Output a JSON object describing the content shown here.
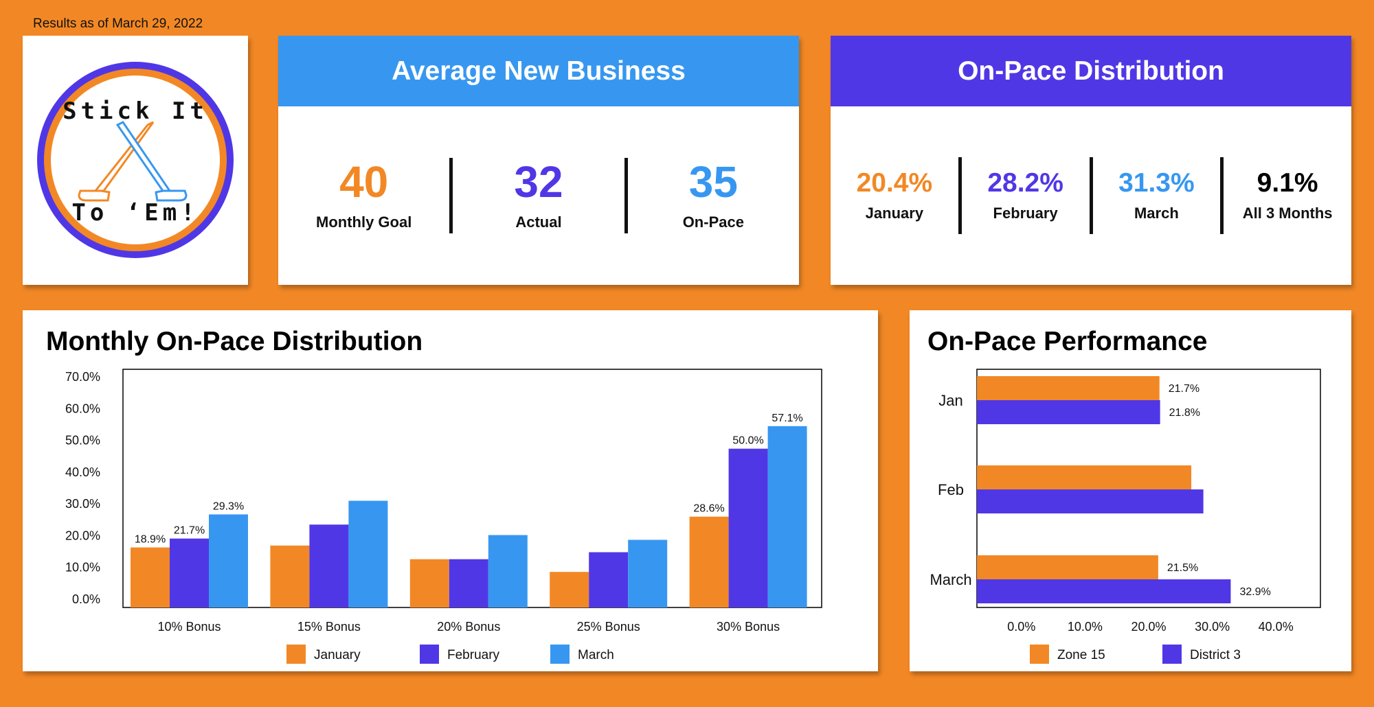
{
  "header": {
    "results_as_of": "Results as of March 29, 2022"
  },
  "logo": {
    "line1": "Stick It",
    "line2": "To ‘Em!"
  },
  "avg_new_business": {
    "title": "Average New Business",
    "color": "#3797F0",
    "items": [
      {
        "value": "40",
        "label": "Monthly Goal",
        "color": "#F28825"
      },
      {
        "value": "32",
        "label": "Actual",
        "color": "#5037E6"
      },
      {
        "value": "35",
        "label": "On-Pace",
        "color": "#3797F0"
      }
    ]
  },
  "on_pace_distribution": {
    "title": "On-Pace Distribution",
    "color": "#5037E6",
    "items": [
      {
        "value": "20.4%",
        "label": "January",
        "color": "#F28825"
      },
      {
        "value": "28.2%",
        "label": "February",
        "color": "#5037E6"
      },
      {
        "value": "31.3%",
        "label": "March",
        "color": "#3797F0"
      },
      {
        "value": "9.1%",
        "label": "All 3 Months",
        "color": "#000000"
      }
    ]
  },
  "colors": {
    "january": "#F28825",
    "february": "#5037E6",
    "march": "#3797F0",
    "background": "#F28825"
  },
  "chart_data": [
    {
      "type": "bar",
      "title": "Monthly On-Pace Distribution",
      "categories": [
        "10% Bonus",
        "15% Bonus",
        "20% Bonus",
        "25% Bonus",
        "30% Bonus"
      ],
      "yticks": [
        "0.0%",
        "10.0%",
        "20.0%",
        "30.0%",
        "40.0%",
        "50.0%",
        "60.0%",
        "70.0%"
      ],
      "ylim": [
        0,
        75
      ],
      "legend_position": "bottom",
      "series": [
        {
          "name": "January",
          "color": "#F28825",
          "values": [
            18.9,
            19.5,
            15.2,
            11.2,
            28.6
          ],
          "labels": [
            "18.9%",
            "",
            "",
            "",
            "28.6%"
          ]
        },
        {
          "name": "February",
          "color": "#5037E6",
          "values": [
            21.7,
            26.1,
            15.2,
            17.4,
            50.0
          ],
          "labels": [
            "21.7%",
            "",
            "",
            "",
            "50.0%"
          ]
        },
        {
          "name": "March",
          "color": "#3797F0",
          "values": [
            29.3,
            33.6,
            22.8,
            21.3,
            57.1
          ],
          "labels": [
            "29.3%",
            "",
            "",
            "",
            "57.1%"
          ]
        }
      ]
    },
    {
      "type": "bar",
      "orientation": "horizontal",
      "title": "On-Pace Performance",
      "categories": [
        "Jan",
        "Feb",
        "March"
      ],
      "xticks": [
        "0.0%",
        "10.0%",
        "20.0%",
        "30.0%",
        "40.0%"
      ],
      "xlim": [
        -7,
        47
      ],
      "legend_position": "bottom",
      "series": [
        {
          "name": "Zone 15",
          "color": "#F28825",
          "values": [
            21.7,
            26.7,
            21.5
          ],
          "labels": [
            "21.7%",
            "",
            "21.5%"
          ]
        },
        {
          "name": "District 3",
          "color": "#5037E6",
          "values": [
            21.8,
            28.6,
            32.9
          ],
          "labels": [
            "21.8%",
            "",
            "32.9%"
          ]
        }
      ]
    }
  ]
}
